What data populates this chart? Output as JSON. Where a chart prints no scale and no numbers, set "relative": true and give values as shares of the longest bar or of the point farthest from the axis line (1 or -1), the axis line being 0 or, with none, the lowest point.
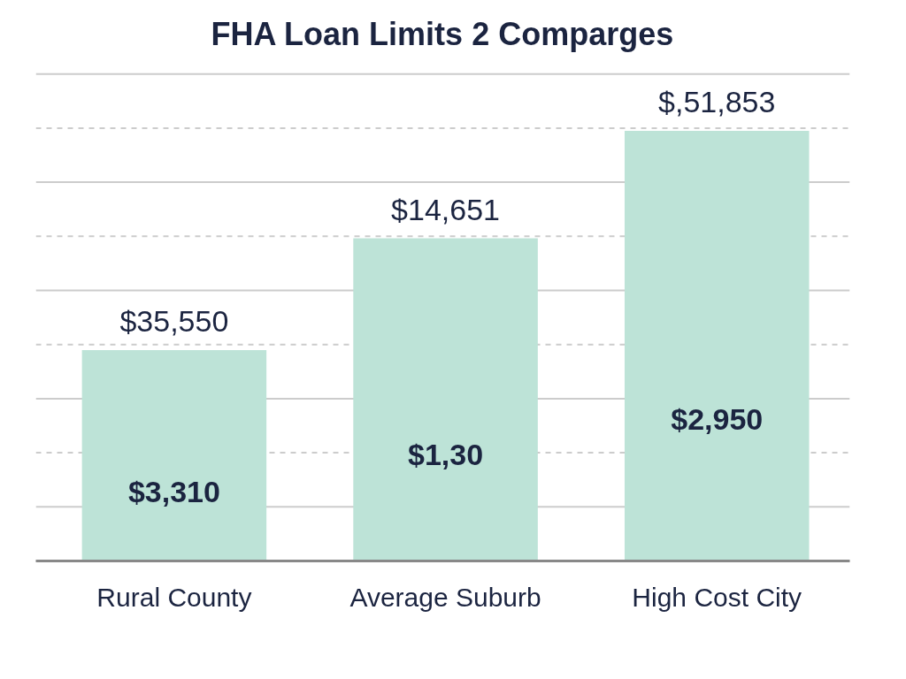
{
  "chart_data": {
    "type": "bar",
    "title": "FHA Loan Limits 2 Comparges",
    "categories": [
      "Rural County",
      "Average Suburb",
      "High Cost City"
    ],
    "values": [
      0.49,
      0.75,
      1
    ],
    "color": "#bde3d7",
    "relative": true,
    "grid": "y",
    "annotations": [
      "$35,550",
      "$14,651",
      "$,51,853",
      "$3,310",
      "$1,30",
      "$2,950"
    ]
  }
}
